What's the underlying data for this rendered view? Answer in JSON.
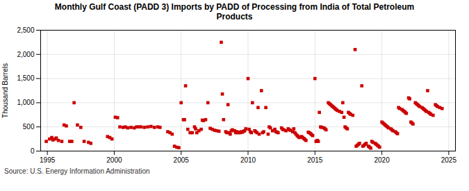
{
  "chart_data": {
    "type": "scatter",
    "title": "Monthly Gulf Coast (PADD 3) Imports by PADD of Processing from India of Total Petroleum\nProducts",
    "ylabel": "Thousand Barrels",
    "source": "Source: U.S. Energy Information Administration",
    "color": "#cc0000",
    "marker": "square",
    "grid": true,
    "xlim": [
      1994.5,
      2025.5
    ],
    "ylim": [
      0,
      2500
    ],
    "xticks": [
      1995,
      2000,
      2005,
      2010,
      2015,
      2020,
      2025
    ],
    "yticks": [
      0,
      500,
      {
        "value": 1000,
        "label": "1,000"
      },
      {
        "value": 1500,
        "label": "1,500"
      },
      {
        "value": 2000,
        "label": "2,000"
      },
      {
        "value": 2500,
        "label": "2,500"
      }
    ],
    "x": [
      1994.92,
      1995.17,
      1995.33,
      1995.42,
      1995.58,
      1995.67,
      1995.83,
      1996.08,
      1996.25,
      1996.42,
      1996.67,
      1996.83,
      1997.0,
      1997.25,
      1997.5,
      1997.75,
      1998.08,
      1998.25,
      1999.5,
      1999.67,
      1999.83,
      2000.08,
      2000.25,
      2000.42,
      2000.67,
      2000.83,
      2001.0,
      2001.25,
      2001.5,
      2001.67,
      2001.83,
      2002.0,
      2002.25,
      2002.5,
      2002.75,
      2003.0,
      2003.25,
      2003.42,
      2004.0,
      2004.17,
      2004.33,
      2004.5,
      2004.67,
      2004.83,
      2005.0,
      2005.17,
      2005.25,
      2005.33,
      2005.5,
      2005.67,
      2005.83,
      2006.0,
      2006.08,
      2006.17,
      2006.33,
      2006.5,
      2006.58,
      2006.67,
      2006.83,
      2007.0,
      2007.17,
      2007.33,
      2007.5,
      2007.67,
      2007.83,
      2008.0,
      2008.08,
      2008.17,
      2008.33,
      2008.42,
      2008.5,
      2008.58,
      2008.67,
      2008.75,
      2008.83,
      2009.0,
      2009.08,
      2009.17,
      2009.25,
      2009.33,
      2009.42,
      2009.5,
      2009.58,
      2009.67,
      2009.75,
      2009.83,
      2010.0,
      2010.08,
      2010.17,
      2010.25,
      2010.33,
      2010.5,
      2010.58,
      2010.67,
      2010.75,
      2010.83,
      2011.0,
      2011.08,
      2011.17,
      2011.33,
      2011.5,
      2011.58,
      2011.67,
      2011.83,
      2012.0,
      2012.08,
      2012.17,
      2012.25,
      2012.5,
      2012.58,
      2012.67,
      2012.83,
      2013.0,
      2013.08,
      2013.17,
      2013.33,
      2013.42,
      2013.5,
      2013.58,
      2013.67,
      2013.75,
      2013.83,
      2014.0,
      2014.08,
      2014.17,
      2014.25,
      2014.33,
      2014.5,
      2014.58,
      2014.67,
      2014.75,
      2014.83,
      2015.0,
      2015.08,
      2015.17,
      2015.25,
      2015.33,
      2015.42,
      2015.5,
      2015.67,
      2015.75,
      2015.83,
      2016.0,
      2016.08,
      2016.17,
      2016.25,
      2016.33,
      2016.42,
      2016.5,
      2016.58,
      2016.67,
      2016.83,
      2017.0,
      2017.08,
      2017.17,
      2017.25,
      2017.33,
      2017.42,
      2017.5,
      2017.58,
      2017.67,
      2017.83,
      2018.0,
      2018.08,
      2018.17,
      2018.25,
      2018.33,
      2018.5,
      2018.58,
      2018.67,
      2018.75,
      2018.83,
      2019.0,
      2019.08,
      2019.17,
      2019.25,
      2019.33,
      2019.5,
      2019.58,
      2019.67,
      2019.75,
      2019.83,
      2020.0,
      2020.08,
      2020.17,
      2020.25,
      2020.33,
      2020.42,
      2020.5,
      2020.67,
      2020.75,
      2020.83,
      2021.0,
      2021.08,
      2021.17,
      2021.25,
      2021.33,
      2021.5,
      2021.58,
      2021.67,
      2021.75,
      2021.83,
      2022.0,
      2022.08,
      2022.17,
      2022.25,
      2022.33,
      2022.5,
      2022.58,
      2022.67,
      2022.75,
      2022.83,
      2023.0,
      2023.08,
      2023.17,
      2023.25,
      2023.33,
      2023.42,
      2023.5,
      2023.58,
      2023.67,
      2023.83,
      2024.0,
      2024.08,
      2024.17,
      2024.33,
      2024.5
    ],
    "values": [
      200,
      250,
      280,
      230,
      250,
      270,
      220,
      200,
      540,
      520,
      200,
      200,
      1000,
      540,
      490,
      200,
      180,
      160,
      300,
      280,
      250,
      700,
      690,
      500,
      490,
      500,
      480,
      490,
      480,
      500,
      500,
      500,
      490,
      500,
      510,
      490,
      500,
      490,
      400,
      380,
      350,
      100,
      80,
      70,
      1000,
      650,
      650,
      1350,
      450,
      380,
      380,
      500,
      460,
      380,
      420,
      450,
      640,
      630,
      650,
      1000,
      470,
      450,
      430,
      420,
      410,
      2250,
      1180,
      650,
      400,
      380,
      960,
      380,
      350,
      420,
      440,
      420,
      380,
      400,
      380,
      390,
      380,
      400,
      390,
      410,
      420,
      460,
      1500,
      450,
      400,
      380,
      1000,
      420,
      400,
      380,
      900,
      350,
      1250,
      380,
      400,
      900,
      350,
      500,
      480,
      420,
      450,
      400,
      390,
      380,
      480,
      450,
      440,
      420,
      460,
      440,
      430,
      400,
      460,
      380,
      350,
      320,
      300,
      280,
      300,
      280,
      260,
      240,
      220,
      390,
      380,
      360,
      340,
      320,
      1500,
      200,
      220,
      200,
      800,
      500,
      490,
      480,
      460,
      440,
      1000,
      980,
      960,
      940,
      920,
      900,
      880,
      860,
      840,
      820,
      800,
      1000,
      700,
      500,
      480,
      460,
      800,
      780,
      760,
      740,
      2100,
      100,
      120,
      140,
      160,
      1350,
      100,
      120,
      140,
      160,
      100,
      80,
      60,
      200,
      180,
      160,
      140,
      120,
      100,
      80,
      600,
      580,
      560,
      540,
      520,
      500,
      480,
      460,
      440,
      420,
      400,
      380,
      360,
      900,
      880,
      860,
      840,
      820,
      800,
      780,
      1100,
      1080,
      600,
      580,
      560,
      1000,
      980,
      960,
      940,
      920,
      900,
      880,
      860,
      840,
      820,
      1250,
      800,
      780,
      760,
      740,
      960,
      940,
      920,
      900,
      880
    ]
  }
}
